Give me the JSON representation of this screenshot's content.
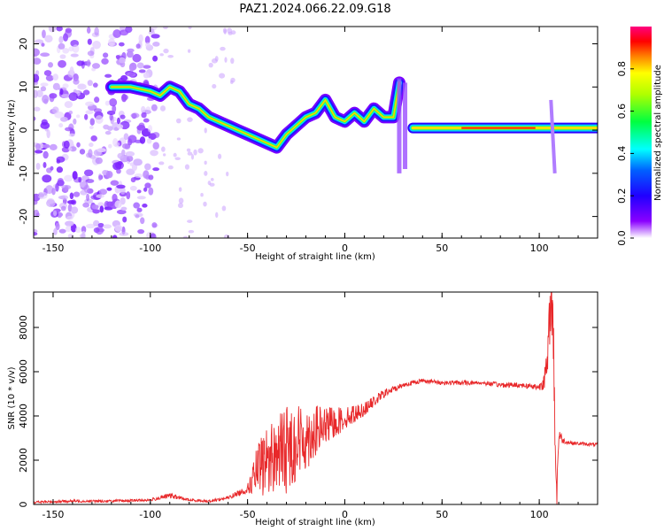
{
  "chart_data": [
    {
      "type": "heatmap",
      "title": "PAZ1.2024.066.22.09.G18",
      "xlabel": "Height of straight line (km)",
      "ylabel": "Frequency (Hz)",
      "xlim": [
        -160,
        130
      ],
      "ylim": [
        -25,
        24
      ],
      "xticks": [
        -150,
        -100,
        -50,
        0,
        50,
        100
      ],
      "yticks": [
        -20,
        -10,
        0,
        10,
        20
      ],
      "ridge": {
        "x": [
          -120,
          -110,
          -100,
          -95,
          -90,
          -85,
          -80,
          -75,
          -70,
          -65,
          -60,
          -55,
          -50,
          -45,
          -40,
          -35,
          -30,
          -25,
          -20,
          -15,
          -10,
          -5,
          0,
          5,
          10,
          15,
          20,
          25,
          28
        ],
        "y": [
          10,
          10,
          9,
          8,
          10,
          9,
          6,
          5,
          3,
          2,
          1,
          0,
          -1,
          -2,
          -3,
          -4,
          -1,
          1,
          3,
          4,
          7,
          3,
          2,
          4,
          2,
          5,
          3,
          3,
          11
        ]
      },
      "flat_band": {
        "x_start": 35,
        "x_end": 130,
        "y": 0.5
      },
      "noise_region": {
        "x_start": -160,
        "x_end": -97
      },
      "colorbar": {
        "label": "Normalized spectral amplitude",
        "ticks": [
          0.0,
          0.2,
          0.4,
          0.6,
          0.8
        ],
        "range": [
          0,
          1
        ],
        "colors": [
          "#ffffff",
          "#8a00ff",
          "#0000ff",
          "#00ffff",
          "#00ff00",
          "#ffff00",
          "#ff0000",
          "#ff00aa"
        ]
      }
    },
    {
      "type": "line",
      "xlabel": "Height of straight line (km)",
      "ylabel": "SNR (10 * v/v)",
      "xlim": [
        -160,
        130
      ],
      "ylim": [
        0,
        9600
      ],
      "xticks": [
        -150,
        -100,
        -50,
        0,
        50,
        100
      ],
      "yticks": [
        0,
        2000,
        4000,
        6000,
        8000
      ],
      "color": "#e8282a",
      "x": [
        -160,
        -140,
        -120,
        -100,
        -90,
        -80,
        -70,
        -60,
        -50,
        -45,
        -40,
        -35,
        -30,
        -25,
        -20,
        -15,
        -10,
        -5,
        0,
        10,
        20,
        30,
        40,
        50,
        60,
        70,
        80,
        90,
        100,
        104,
        106,
        107,
        108,
        109,
        110,
        112,
        115,
        120,
        130
      ],
      "y": [
        100,
        150,
        150,
        200,
        400,
        200,
        150,
        300,
        700,
        1500,
        2000,
        2300,
        2500,
        2800,
        3000,
        3300,
        3500,
        3700,
        3900,
        4300,
        5000,
        5400,
        5600,
        5500,
        5500,
        5500,
        5400,
        5400,
        5300,
        6000,
        9500,
        8500,
        4000,
        200,
        3200,
        2900,
        2800,
        2750,
        2700
      ],
      "amplitude": [
        60,
        60,
        60,
        60,
        120,
        60,
        60,
        80,
        200,
        1200,
        1600,
        1800,
        2000,
        1800,
        1500,
        1200,
        900,
        700,
        500,
        300,
        200,
        120,
        100,
        100,
        100,
        100,
        120,
        120,
        150,
        800,
        1500,
        1500,
        1500,
        1500,
        400,
        150,
        80,
        80,
        80
      ]
    }
  ]
}
